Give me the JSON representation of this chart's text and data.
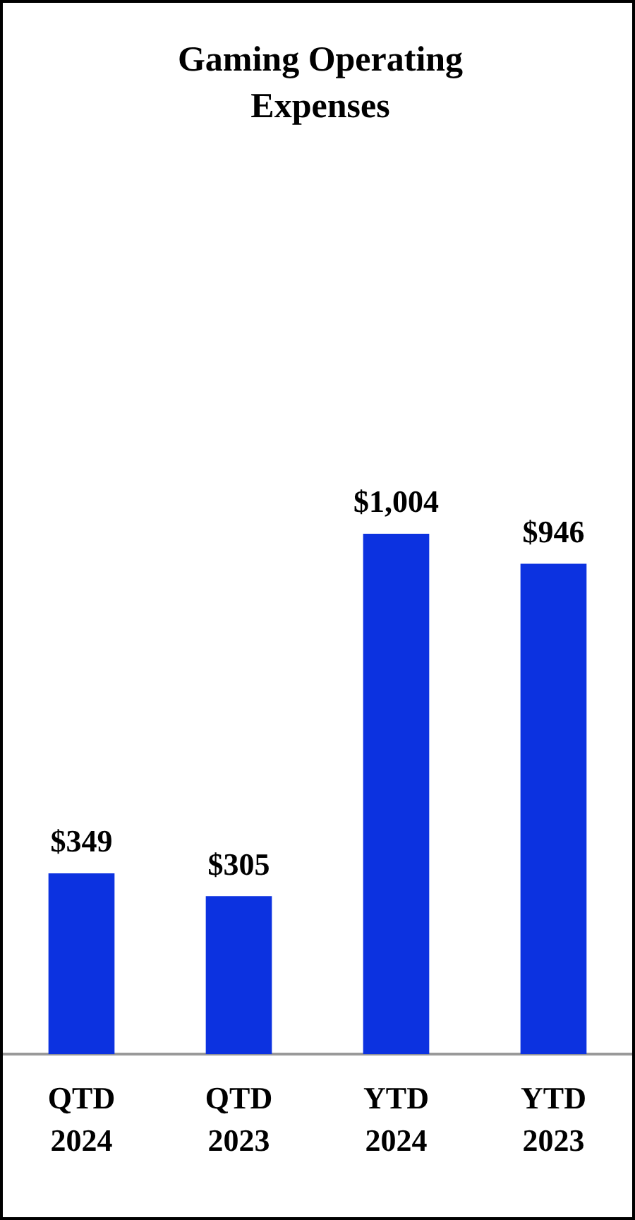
{
  "chart_data": {
    "type": "bar",
    "title": "Gaming Operating Expenses",
    "categories": [
      "QTD 2024",
      "QTD 2023",
      "YTD 2024",
      "YTD 2023"
    ],
    "values": [
      349,
      305,
      1004,
      946
    ],
    "value_labels": [
      "$349",
      "$305",
      "$1,004",
      "$946"
    ],
    "color": "#0c32e0"
  }
}
